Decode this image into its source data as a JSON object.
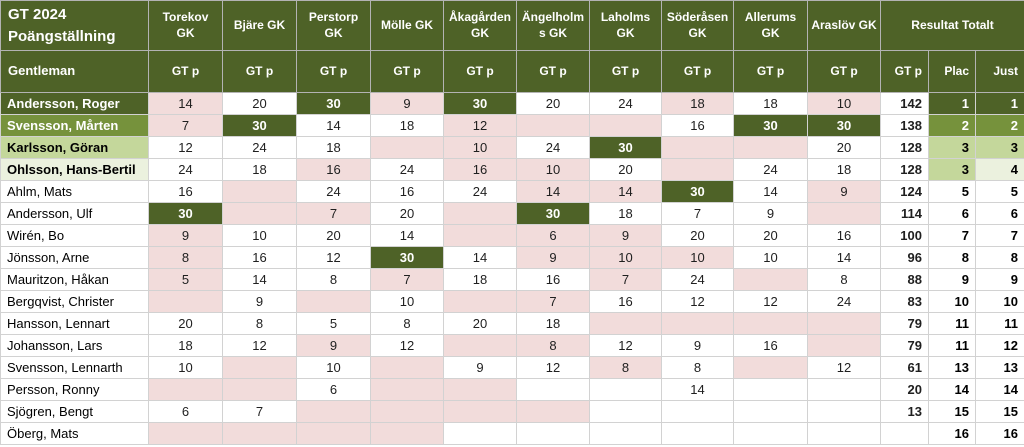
{
  "header": {
    "title": "GT 2024\nPoängställning",
    "category": "Gentleman",
    "clubs": [
      "Torekov GK",
      "Bjäre GK",
      "Perstorp\nGK",
      "Mölle GK",
      "Åkagården\nGK",
      "Ängelholm\ns GK",
      "Laholms\nGK",
      "Söderåsen\nGK",
      "Allerums\nGK",
      "Araslöv GK"
    ],
    "club_points_label": "GT p",
    "results_group": "Resultat Totalt",
    "results_cols": {
      "points": "GT p",
      "placement": "Plac",
      "adjusted": "Just"
    }
  },
  "colors": {
    "header_green": "#4e6227",
    "medium_green": "#76923c",
    "light_green": "#c4d79b",
    "pale_green": "#ebf1de",
    "pink": "#f2dcdb"
  },
  "rows": [
    {
      "name": "Andersson, Roger",
      "name_style": "dark",
      "scores": [
        {
          "v": "14",
          "s": "p"
        },
        {
          "v": "20",
          "s": "w"
        },
        {
          "v": "30",
          "s": "g"
        },
        {
          "v": "9",
          "s": "p"
        },
        {
          "v": "30",
          "s": "g"
        },
        {
          "v": "20",
          "s": "w"
        },
        {
          "v": "24",
          "s": "w"
        },
        {
          "v": "18",
          "s": "p"
        },
        {
          "v": "18",
          "s": "w"
        },
        {
          "v": "10",
          "s": "p"
        }
      ],
      "total": "142",
      "plac": "1",
      "just": "1",
      "plac_style": "dark",
      "just_style": "dark"
    },
    {
      "name": "Svensson, Mårten",
      "name_style": "medium",
      "scores": [
        {
          "v": "7",
          "s": "p"
        },
        {
          "v": "30",
          "s": "g"
        },
        {
          "v": "14",
          "s": "w"
        },
        {
          "v": "18",
          "s": "w"
        },
        {
          "v": "12",
          "s": "p"
        },
        {
          "v": "",
          "s": "p"
        },
        {
          "v": "",
          "s": "p"
        },
        {
          "v": "16",
          "s": "w"
        },
        {
          "v": "30",
          "s": "g"
        },
        {
          "v": "30",
          "s": "g"
        }
      ],
      "total": "138",
      "plac": "2",
      "just": "2",
      "plac_style": "medium",
      "just_style": "medium"
    },
    {
      "name": "Karlsson, Göran",
      "name_style": "light",
      "scores": [
        {
          "v": "12",
          "s": "w"
        },
        {
          "v": "24",
          "s": "w"
        },
        {
          "v": "18",
          "s": "w"
        },
        {
          "v": "",
          "s": "p"
        },
        {
          "v": "10",
          "s": "p"
        },
        {
          "v": "24",
          "s": "w"
        },
        {
          "v": "30",
          "s": "g"
        },
        {
          "v": "",
          "s": "p"
        },
        {
          "v": "",
          "s": "p"
        },
        {
          "v": "20",
          "s": "w"
        }
      ],
      "total": "128",
      "plac": "3",
      "just": "3",
      "plac_style": "light",
      "just_style": "light"
    },
    {
      "name": "Ohlsson, Hans-Bertil",
      "name_style": "pale",
      "scores": [
        {
          "v": "24",
          "s": "w"
        },
        {
          "v": "18",
          "s": "w"
        },
        {
          "v": "16",
          "s": "p"
        },
        {
          "v": "24",
          "s": "w"
        },
        {
          "v": "16",
          "s": "p"
        },
        {
          "v": "10",
          "s": "p"
        },
        {
          "v": "20",
          "s": "w"
        },
        {
          "v": "",
          "s": "p"
        },
        {
          "v": "24",
          "s": "w"
        },
        {
          "v": "18",
          "s": "w"
        }
      ],
      "total": "128",
      "plac": "3",
      "just": "4",
      "plac_style": "light",
      "just_style": "pale"
    },
    {
      "name": "Ahlm, Mats",
      "name_style": "plain",
      "scores": [
        {
          "v": "16",
          "s": "w"
        },
        {
          "v": "",
          "s": "p"
        },
        {
          "v": "24",
          "s": "w"
        },
        {
          "v": "16",
          "s": "w"
        },
        {
          "v": "24",
          "s": "w"
        },
        {
          "v": "14",
          "s": "p"
        },
        {
          "v": "14",
          "s": "p"
        },
        {
          "v": "30",
          "s": "g"
        },
        {
          "v": "14",
          "s": "w"
        },
        {
          "v": "9",
          "s": "p"
        }
      ],
      "total": "124",
      "plac": "5",
      "just": "5",
      "plac_style": "plain",
      "just_style": "plain"
    },
    {
      "name": "Andersson, Ulf",
      "name_style": "plain",
      "scores": [
        {
          "v": "30",
          "s": "g"
        },
        {
          "v": "",
          "s": "p"
        },
        {
          "v": "7",
          "s": "p"
        },
        {
          "v": "20",
          "s": "w"
        },
        {
          "v": "",
          "s": "p"
        },
        {
          "v": "30",
          "s": "g"
        },
        {
          "v": "18",
          "s": "w"
        },
        {
          "v": "7",
          "s": "w"
        },
        {
          "v": "9",
          "s": "w"
        },
        {
          "v": "",
          "s": "p"
        }
      ],
      "total": "114",
      "plac": "6",
      "just": "6",
      "plac_style": "plain",
      "just_style": "plain"
    },
    {
      "name": "Wirén, Bo",
      "name_style": "plain",
      "scores": [
        {
          "v": "9",
          "s": "p"
        },
        {
          "v": "10",
          "s": "w"
        },
        {
          "v": "20",
          "s": "w"
        },
        {
          "v": "14",
          "s": "w"
        },
        {
          "v": "",
          "s": "p"
        },
        {
          "v": "6",
          "s": "p"
        },
        {
          "v": "9",
          "s": "p"
        },
        {
          "v": "20",
          "s": "w"
        },
        {
          "v": "20",
          "s": "w"
        },
        {
          "v": "16",
          "s": "w"
        }
      ],
      "total": "100",
      "plac": "7",
      "just": "7",
      "plac_style": "plain",
      "just_style": "plain"
    },
    {
      "name": "Jönsson, Arne",
      "name_style": "plain",
      "scores": [
        {
          "v": "8",
          "s": "p"
        },
        {
          "v": "16",
          "s": "w"
        },
        {
          "v": "12",
          "s": "w"
        },
        {
          "v": "30",
          "s": "g"
        },
        {
          "v": "14",
          "s": "w"
        },
        {
          "v": "9",
          "s": "p"
        },
        {
          "v": "10",
          "s": "p"
        },
        {
          "v": "10",
          "s": "p"
        },
        {
          "v": "10",
          "s": "w"
        },
        {
          "v": "14",
          "s": "w"
        }
      ],
      "total": "96",
      "plac": "8",
      "just": "8",
      "plac_style": "plain",
      "just_style": "plain"
    },
    {
      "name": "Mauritzon, Håkan",
      "name_style": "plain",
      "scores": [
        {
          "v": "5",
          "s": "p"
        },
        {
          "v": "14",
          "s": "w"
        },
        {
          "v": "8",
          "s": "w"
        },
        {
          "v": "7",
          "s": "p"
        },
        {
          "v": "18",
          "s": "w"
        },
        {
          "v": "16",
          "s": "w"
        },
        {
          "v": "7",
          "s": "p"
        },
        {
          "v": "24",
          "s": "w"
        },
        {
          "v": "",
          "s": "p"
        },
        {
          "v": "8",
          "s": "w"
        }
      ],
      "total": "88",
      "plac": "9",
      "just": "9",
      "plac_style": "plain",
      "just_style": "plain"
    },
    {
      "name": "Bergqvist, Christer",
      "name_style": "plain",
      "scores": [
        {
          "v": "",
          "s": "p"
        },
        {
          "v": "9",
          "s": "w"
        },
        {
          "v": "",
          "s": "p"
        },
        {
          "v": "10",
          "s": "w"
        },
        {
          "v": "",
          "s": "p"
        },
        {
          "v": "7",
          "s": "p"
        },
        {
          "v": "16",
          "s": "w"
        },
        {
          "v": "12",
          "s": "w"
        },
        {
          "v": "12",
          "s": "w"
        },
        {
          "v": "24",
          "s": "w"
        }
      ],
      "total": "83",
      "plac": "10",
      "just": "10",
      "plac_style": "plain",
      "just_style": "plain"
    },
    {
      "name": "Hansson, Lennart",
      "name_style": "plain",
      "scores": [
        {
          "v": "20",
          "s": "w"
        },
        {
          "v": "8",
          "s": "w"
        },
        {
          "v": "5",
          "s": "w"
        },
        {
          "v": "8",
          "s": "w"
        },
        {
          "v": "20",
          "s": "w"
        },
        {
          "v": "18",
          "s": "w"
        },
        {
          "v": "",
          "s": "p"
        },
        {
          "v": "",
          "s": "p"
        },
        {
          "v": "",
          "s": "p"
        },
        {
          "v": "",
          "s": "p"
        }
      ],
      "total": "79",
      "plac": "11",
      "just": "11",
      "plac_style": "plain",
      "just_style": "plain"
    },
    {
      "name": "Johansson, Lars",
      "name_style": "plain",
      "scores": [
        {
          "v": "18",
          "s": "w"
        },
        {
          "v": "12",
          "s": "w"
        },
        {
          "v": "9",
          "s": "p"
        },
        {
          "v": "12",
          "s": "w"
        },
        {
          "v": "",
          "s": "p"
        },
        {
          "v": "8",
          "s": "p"
        },
        {
          "v": "12",
          "s": "w"
        },
        {
          "v": "9",
          "s": "w"
        },
        {
          "v": "16",
          "s": "w"
        },
        {
          "v": "",
          "s": "p"
        }
      ],
      "total": "79",
      "plac": "11",
      "just": "12",
      "plac_style": "plain",
      "just_style": "plain"
    },
    {
      "name": "Svensson, Lennarth",
      "name_style": "plain",
      "scores": [
        {
          "v": "10",
          "s": "w"
        },
        {
          "v": "",
          "s": "p"
        },
        {
          "v": "10",
          "s": "w"
        },
        {
          "v": "",
          "s": "p"
        },
        {
          "v": "9",
          "s": "w"
        },
        {
          "v": "12",
          "s": "w"
        },
        {
          "v": "8",
          "s": "p"
        },
        {
          "v": "8",
          "s": "w"
        },
        {
          "v": "",
          "s": "p"
        },
        {
          "v": "12",
          "s": "w"
        }
      ],
      "total": "61",
      "plac": "13",
      "just": "13",
      "plac_style": "plain",
      "just_style": "plain"
    },
    {
      "name": "Persson, Ronny",
      "name_style": "plain",
      "scores": [
        {
          "v": "",
          "s": "p"
        },
        {
          "v": "",
          "s": "p"
        },
        {
          "v": "6",
          "s": "w"
        },
        {
          "v": "",
          "s": "p"
        },
        {
          "v": "",
          "s": "p"
        },
        {
          "v": "",
          "s": "w"
        },
        {
          "v": "",
          "s": "w"
        },
        {
          "v": "14",
          "s": "w"
        },
        {
          "v": "",
          "s": "w"
        },
        {
          "v": "",
          "s": "w"
        }
      ],
      "total": "20",
      "plac": "14",
      "just": "14",
      "plac_style": "plain",
      "just_style": "plain"
    },
    {
      "name": "Sjögren, Bengt",
      "name_style": "plain",
      "scores": [
        {
          "v": "6",
          "s": "w"
        },
        {
          "v": "7",
          "s": "w"
        },
        {
          "v": "",
          "s": "p"
        },
        {
          "v": "",
          "s": "p"
        },
        {
          "v": "",
          "s": "p"
        },
        {
          "v": "",
          "s": "p"
        },
        {
          "v": "",
          "s": "w"
        },
        {
          "v": "",
          "s": "w"
        },
        {
          "v": "",
          "s": "w"
        },
        {
          "v": "",
          "s": "w"
        }
      ],
      "total": "13",
      "plac": "15",
      "just": "15",
      "plac_style": "plain",
      "just_style": "plain"
    },
    {
      "name": "Öberg, Mats",
      "name_style": "plain",
      "scores": [
        {
          "v": "",
          "s": "p"
        },
        {
          "v": "",
          "s": "p"
        },
        {
          "v": "",
          "s": "p"
        },
        {
          "v": "",
          "s": "p"
        },
        {
          "v": "",
          "s": "w"
        },
        {
          "v": "",
          "s": "w"
        },
        {
          "v": "",
          "s": "w"
        },
        {
          "v": "",
          "s": "w"
        },
        {
          "v": "",
          "s": "w"
        },
        {
          "v": "",
          "s": "w"
        }
      ],
      "total": "",
      "plac": "16",
      "just": "16",
      "plac_style": "plain",
      "just_style": "plain"
    }
  ]
}
